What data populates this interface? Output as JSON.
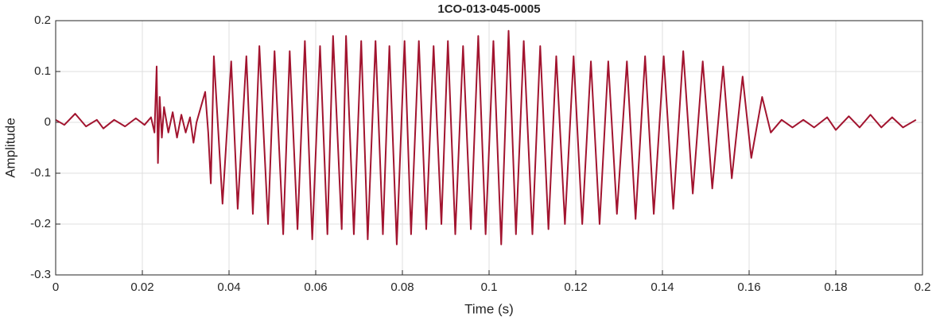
{
  "chart_data": {
    "type": "line",
    "title": "1CO-013-045-0005",
    "x_label": "Time (s)",
    "y_label": "Amplitude",
    "xlim": [
      0,
      0.2
    ],
    "ylim": [
      -0.3,
      0.2
    ],
    "xticks": [
      0,
      0.02,
      0.04,
      0.06,
      0.08,
      0.1,
      0.12,
      0.14,
      0.16,
      0.18,
      0.2
    ],
    "yticks": [
      -0.3,
      -0.2,
      -0.1,
      0,
      0.1,
      0.2
    ],
    "grid": true,
    "x": [
      0,
      0.002,
      0.0045,
      0.007,
      0.0095,
      0.011,
      0.0135,
      0.016,
      0.0185,
      0.0205,
      0.022,
      0.0228,
      0.0233,
      0.0236,
      0.024,
      0.0245,
      0.025,
      0.026,
      0.027,
      0.028,
      0.029,
      0.03,
      0.031,
      0.0318,
      0.0325,
      0.0335,
      0.0345,
      0.0352,
      0.0358,
      0.0365,
      0.0385,
      0.0405,
      0.042,
      0.044,
      0.0455,
      0.047,
      0.049,
      0.0505,
      0.0525,
      0.054,
      0.0558,
      0.0575,
      0.0592,
      0.061,
      0.0627,
      0.064,
      0.066,
      0.067,
      0.0688,
      0.0705,
      0.072,
      0.0738,
      0.0755,
      0.077,
      0.0787,
      0.0805,
      0.082,
      0.0838,
      0.0855,
      0.0872,
      0.089,
      0.0905,
      0.0922,
      0.094,
      0.0958,
      0.0975,
      0.0992,
      0.101,
      0.1028,
      0.1045,
      0.1062,
      0.108,
      0.11,
      0.1118,
      0.1137,
      0.1155,
      0.1175,
      0.1195,
      0.1215,
      0.1235,
      0.1255,
      0.1275,
      0.1295,
      0.1318,
      0.1338,
      0.136,
      0.138,
      0.1403,
      0.1425,
      0.1448,
      0.147,
      0.1493,
      0.1515,
      0.154,
      0.156,
      0.1585,
      0.1605,
      0.163,
      0.165,
      0.1675,
      0.17,
      0.1725,
      0.175,
      0.178,
      0.18,
      0.183,
      0.1855,
      0.188,
      0.1905,
      0.193,
      0.1955,
      0.1985
    ],
    "series": [
      {
        "name": "Amplitude",
        "color": "#a2142f",
        "values": [
          0.005,
          -0.005,
          0.017,
          -0.008,
          0.005,
          -0.012,
          0.005,
          -0.008,
          0.008,
          -0.005,
          0.01,
          -0.02,
          0.11,
          -0.08,
          0.05,
          -0.03,
          0.03,
          -0.02,
          0.02,
          -0.03,
          0.015,
          -0.02,
          0.01,
          -0.04,
          0,
          0.03,
          0.06,
          -0.02,
          -0.12,
          0.13,
          -0.16,
          0.12,
          -0.17,
          0.13,
          -0.18,
          0.15,
          -0.2,
          0.14,
          -0.22,
          0.14,
          -0.21,
          0.16,
          -0.23,
          0.15,
          -0.22,
          0.17,
          -0.21,
          0.17,
          -0.22,
          0.16,
          -0.23,
          0.16,
          -0.22,
          0.15,
          -0.24,
          0.16,
          -0.22,
          0.16,
          -0.21,
          0.15,
          -0.2,
          0.16,
          -0.22,
          0.15,
          -0.21,
          0.17,
          -0.22,
          0.16,
          -0.24,
          0.18,
          -0.22,
          0.16,
          -0.22,
          0.15,
          -0.21,
          0.13,
          -0.2,
          0.13,
          -0.2,
          0.12,
          -0.2,
          0.12,
          -0.18,
          0.12,
          -0.19,
          0.13,
          -0.18,
          0.13,
          -0.17,
          0.14,
          -0.14,
          0.12,
          -0.13,
          0.11,
          -0.11,
          0.09,
          -0.07,
          0.05,
          -0.02,
          0.005,
          -0.01,
          0.005,
          -0.01,
          0.01,
          -0.015,
          0.012,
          -0.01,
          0.015,
          -0.01,
          0.01,
          -0.01,
          0.005
        ]
      }
    ]
  }
}
